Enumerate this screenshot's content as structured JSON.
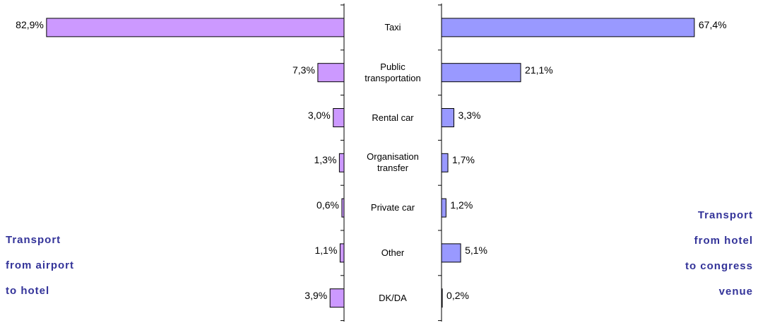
{
  "chart_data": {
    "type": "butterfly",
    "categories": [
      "Taxi",
      "Public\ntransportation",
      "Rental car",
      "Organisation\ntransfer",
      "Private car",
      "Other",
      "DK/DA"
    ],
    "series": [
      {
        "name": "Transport\nfrom airport\nto hotel",
        "color": "#cc99ff",
        "values": [
          82.9,
          7.3,
          3.0,
          1.3,
          0.6,
          1.1,
          3.9
        ],
        "value_labels": [
          "82,9%",
          "7,3%",
          "3,0%",
          "1,3%",
          "0,6%",
          "1,1%",
          "3,9%"
        ]
      },
      {
        "name": "Transport\nfrom hotel\nto congress\nvenue",
        "color": "#9999ff",
        "values": [
          67.4,
          21.1,
          3.3,
          1.7,
          1.2,
          5.1,
          0.2
        ],
        "value_labels": [
          "67,4%",
          "21,1%",
          "3,3%",
          "1,7%",
          "1,2%",
          "5,1%",
          "0,2%"
        ]
      }
    ]
  }
}
